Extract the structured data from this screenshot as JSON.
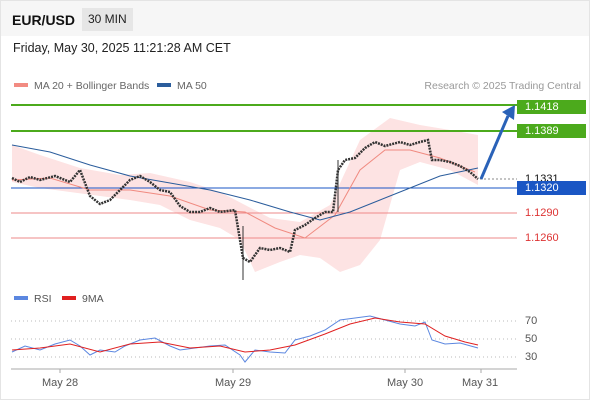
{
  "header": {
    "symbol": "EUR/USD",
    "timeframe": "30 MIN"
  },
  "datetime": "Friday, May 30, 2025 11:21:28 AM CET",
  "legend": {
    "ma20": {
      "label": "MA 20 + Bollinger Bands",
      "color": "#f28b82"
    },
    "ma50": {
      "label": "MA 50",
      "color": "#2b5d9c"
    }
  },
  "copyright": "Research © 2025 Trading Central",
  "levels": {
    "r2": "1.1418",
    "r1": "1.1389",
    "last": "1.1331",
    "pivot": "1.1320",
    "s1": "1.1290",
    "s2": "1.1260"
  },
  "colors": {
    "resistance": "#4caa1c",
    "pivot": "#1a56c4",
    "support": "#e06666",
    "arrow": "#2a62b8",
    "band": "#fde0e0",
    "rsi": "#5b87e0",
    "rsi_ma": "#e02020"
  },
  "rsi": {
    "label": "RSI",
    "ma_label": "9MA",
    "levels": [
      "70",
      "50",
      "30"
    ]
  },
  "xaxis": [
    "May 28",
    "May 29",
    "May 30",
    "May 31"
  ]
}
